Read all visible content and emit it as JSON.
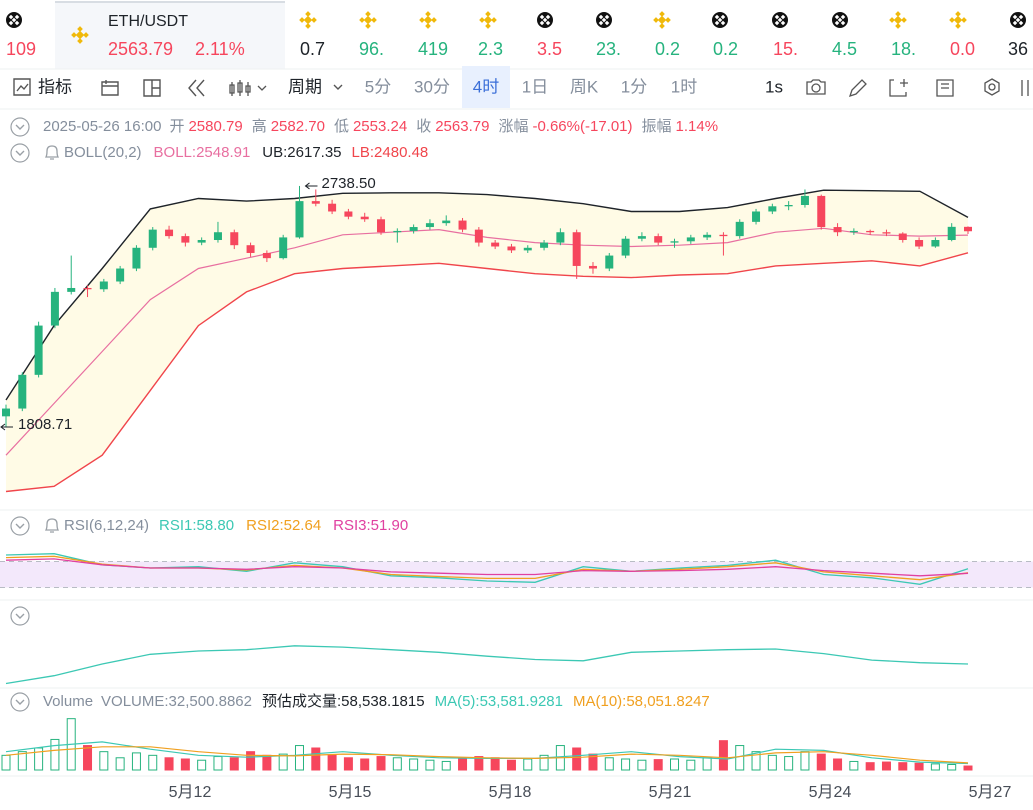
{
  "ticker": {
    "active": {
      "pair": "ETH/USDT",
      "price": "2563.79",
      "change": "2.11%"
    },
    "items": [
      {
        "value": "109",
        "color": "#f6465d"
      },
      {
        "value": "0.7",
        "color": "#1e2329"
      },
      {
        "value": "96.",
        "color": "#26b37e"
      },
      {
        "value": "419",
        "color": "#26b37e"
      },
      {
        "value": "2.3",
        "color": "#26b37e"
      },
      {
        "value": "3.5",
        "color": "#f6465d"
      },
      {
        "value": "23.",
        "color": "#26b37e"
      },
      {
        "value": "0.2",
        "color": "#26b37e"
      },
      {
        "value": "0.2",
        "color": "#26b37e"
      },
      {
        "value": "15.",
        "color": "#f6465d"
      },
      {
        "value": "4.5",
        "color": "#26b37e"
      },
      {
        "value": "18.",
        "color": "#26b37e"
      },
      {
        "value": "0.0",
        "color": "#f6465d"
      },
      {
        "value": "36",
        "color": "#1e2329"
      }
    ]
  },
  "toolbar": {
    "indicator": "指标",
    "period": "周期",
    "intervals": [
      "5分",
      "30分",
      "4时",
      "1日",
      "周K",
      "1分",
      "1时"
    ],
    "selected": 2,
    "seconds": "1s"
  },
  "info": {
    "time": "2025-05-26 16:00",
    "fields": [
      {
        "label": "开",
        "value": "2580.79"
      },
      {
        "label": "高",
        "value": "2582.70"
      },
      {
        "label": "低",
        "value": "2553.24"
      },
      {
        "label": "收",
        "value": "2563.79"
      },
      {
        "label": "涨幅",
        "value": "-0.66%(-17.01)"
      },
      {
        "label": "振幅",
        "value": "1.14%"
      }
    ]
  },
  "boll": {
    "name": "BOLL(20,2)",
    "mid_label": "BOLL:2548.91",
    "ub_label": "UB:2617.35",
    "lb_label": "LB:2480.48",
    "upper": [
      1913,
      2200,
      2420,
      2650,
      2690,
      2680,
      2690,
      2710,
      2712,
      2712,
      2705,
      2690,
      2670,
      2640,
      2640,
      2655,
      2690,
      2722,
      2720,
      2718,
      2617.35
    ],
    "mid": [
      1700,
      1900,
      2100,
      2300,
      2420,
      2460,
      2500,
      2550,
      2560,
      2570,
      2540,
      2520,
      2510,
      2505,
      2510,
      2520,
      2560,
      2575,
      2550,
      2545,
      2548.91
    ],
    "lower": [
      1560,
      1580,
      1700,
      1950,
      2200,
      2330,
      2400,
      2420,
      2430,
      2440,
      2420,
      2400,
      2390,
      2385,
      2395,
      2400,
      2430,
      2440,
      2450,
      2430,
      2480.48
    ],
    "upper_color": "#1e2329",
    "mid_color": "#e86fa0",
    "lower_color": "#f0454b",
    "fill": "#fffbe6"
  },
  "kline": {
    "ylim": [
      1508,
      2800
    ],
    "up_color": "#26b37e",
    "down_color": "#f6465d",
    "high_label": "2738.50",
    "low_label": "1808.71",
    "candles": [
      [
        1850,
        1895,
        1808.71,
        1880
      ],
      [
        1880,
        2020,
        1870,
        2010
      ],
      [
        2010,
        2215,
        2000,
        2200
      ],
      [
        2200,
        2345,
        2190,
        2330
      ],
      [
        2330,
        2470,
        2320,
        2345
      ],
      [
        2345,
        2355,
        2310,
        2340
      ],
      [
        2340,
        2380,
        2330,
        2370
      ],
      [
        2370,
        2430,
        2360,
        2420
      ],
      [
        2420,
        2510,
        2410,
        2500
      ],
      [
        2500,
        2580,
        2490,
        2570
      ],
      [
        2570,
        2585,
        2535,
        2545
      ],
      [
        2545,
        2555,
        2505,
        2520
      ],
      [
        2520,
        2540,
        2510,
        2530
      ],
      [
        2530,
        2600,
        2520,
        2560
      ],
      [
        2560,
        2570,
        2495,
        2510
      ],
      [
        2510,
        2520,
        2465,
        2480
      ],
      [
        2480,
        2490,
        2445,
        2460
      ],
      [
        2460,
        2550,
        2455,
        2540
      ],
      [
        2540,
        2738.5,
        2535,
        2680
      ],
      [
        2680,
        2725,
        2660,
        2670
      ],
      [
        2670,
        2685,
        2630,
        2640
      ],
      [
        2640,
        2650,
        2610,
        2620
      ],
      [
        2620,
        2635,
        2600,
        2610
      ],
      [
        2610,
        2620,
        2550,
        2560
      ],
      [
        2560,
        2575,
        2520,
        2565
      ],
      [
        2565,
        2590,
        2555,
        2580
      ],
      [
        2580,
        2610,
        2570,
        2595
      ],
      [
        2595,
        2625,
        2585,
        2605
      ],
      [
        2605,
        2615,
        2560,
        2570
      ],
      [
        2570,
        2580,
        2505,
        2520
      ],
      [
        2520,
        2530,
        2495,
        2505
      ],
      [
        2505,
        2515,
        2480,
        2490
      ],
      [
        2490,
        2510,
        2480,
        2500
      ],
      [
        2500,
        2530,
        2490,
        2520
      ],
      [
        2520,
        2575,
        2510,
        2560
      ],
      [
        2560,
        2570,
        2380,
        2430
      ],
      [
        2430,
        2445,
        2400,
        2420
      ],
      [
        2420,
        2480,
        2410,
        2470
      ],
      [
        2470,
        2545,
        2460,
        2535
      ],
      [
        2535,
        2560,
        2525,
        2545
      ],
      [
        2545,
        2555,
        2510,
        2520
      ],
      [
        2520,
        2535,
        2500,
        2525
      ],
      [
        2525,
        2550,
        2515,
        2540
      ],
      [
        2540,
        2560,
        2530,
        2550
      ],
      [
        2550,
        2560,
        2470,
        2545
      ],
      [
        2545,
        2610,
        2535,
        2600
      ],
      [
        2600,
        2650,
        2590,
        2640
      ],
      [
        2640,
        2670,
        2630,
        2660
      ],
      [
        2660,
        2680,
        2645,
        2665
      ],
      [
        2665,
        2725,
        2655,
        2700
      ],
      [
        2700,
        2705,
        2570,
        2580
      ],
      [
        2580,
        2595,
        2545,
        2560
      ],
      [
        2560,
        2575,
        2550,
        2565
      ],
      [
        2565,
        2570,
        2550,
        2560
      ],
      [
        2560,
        2570,
        2545,
        2555
      ],
      [
        2555,
        2560,
        2520,
        2530
      ],
      [
        2530,
        2540,
        2495,
        2505
      ],
      [
        2505,
        2540,
        2500,
        2530
      ],
      [
        2530,
        2595,
        2525,
        2580.79
      ],
      [
        2580.79,
        2582.7,
        2553.24,
        2563.79
      ]
    ]
  },
  "rsi": {
    "name": "RSI(6,12,24)",
    "ylim": [
      0,
      100
    ],
    "levels": [
      30,
      70
    ],
    "band_fill": "#f3e8fb",
    "series": [
      {
        "name": "RSI1:58.80",
        "color": "#3cc8b4",
        "values": [
          80,
          82,
          65,
          60,
          62,
          55,
          68,
          62,
          48,
          45,
          40,
          38,
          62,
          55,
          60,
          64,
          72,
          50,
          45,
          35,
          58.8
        ]
      },
      {
        "name": "RSI2:52.64",
        "color": "#f0a020",
        "values": [
          76,
          78,
          66,
          60,
          60,
          57,
          64,
          60,
          50,
          47,
          44,
          44,
          58,
          55,
          58,
          62,
          68,
          54,
          48,
          42,
          52.64
        ]
      },
      {
        "name": "RSI3:51.90",
        "color": "#e040a0",
        "values": [
          72,
          74,
          65,
          60,
          60,
          58,
          62,
          60,
          54,
          52,
          50,
          50,
          56,
          55,
          56,
          58,
          62,
          56,
          52,
          48,
          51.9
        ]
      }
    ]
  },
  "osc": {
    "ylim": [
      0,
      100
    ],
    "color": "#3cc8b4",
    "values": [
      10,
      22,
      40,
      55,
      60,
      62,
      68,
      66,
      62,
      58,
      52,
      47,
      45,
      58,
      60,
      62,
      63,
      56,
      46,
      42,
      40
    ]
  },
  "volume": {
    "name": "Volume",
    "ylim": [
      0,
      450000
    ],
    "labels": [
      {
        "text": "VOLUME:32,500.8862",
        "color": "#848e9c"
      },
      {
        "text": "预估成交量:58,538.1815",
        "color": "#1e2329"
      },
      {
        "text": "MA(5):53,581.9281",
        "color": "#3cc8b4"
      },
      {
        "text": "MA(10):58,051.8247",
        "color": "#f0a020"
      }
    ],
    "values": [
      120000,
      150000,
      180000,
      250000,
      420000,
      200000,
      150000,
      100000,
      140000,
      120000,
      100000,
      90000,
      80000,
      110000,
      100000,
      150000,
      120000,
      130000,
      200000,
      180000,
      120000,
      100000,
      90000,
      110000,
      100000,
      90000,
      80000,
      70000,
      90000,
      110000,
      100000,
      80000,
      90000,
      120000,
      200000,
      180000,
      130000,
      100000,
      90000,
      80000,
      85000,
      90000,
      80000,
      100000,
      240000,
      200000,
      150000,
      120000,
      110000,
      150000,
      130000,
      90000,
      70000,
      60000,
      65000,
      60000,
      55000,
      50000,
      45000,
      32500.8862
    ],
    "ma5": [
      150000,
      200000,
      230000,
      170000,
      120000,
      105000,
      120000,
      150000,
      120000,
      100000,
      95000,
      95000,
      120000,
      150000,
      110000,
      90000,
      170000,
      160000,
      100000,
      65000,
      53581.9281
    ],
    "ma10": [
      120000,
      160000,
      190000,
      190000,
      150000,
      120000,
      115000,
      130000,
      125000,
      110000,
      100000,
      95000,
      105000,
      130000,
      120000,
      100000,
      140000,
      150000,
      120000,
      80000,
      58051.8247
    ]
  },
  "x_labels": [
    "5月12",
    "5月15",
    "5月18",
    "5月21",
    "5月24",
    "5月27"
  ]
}
